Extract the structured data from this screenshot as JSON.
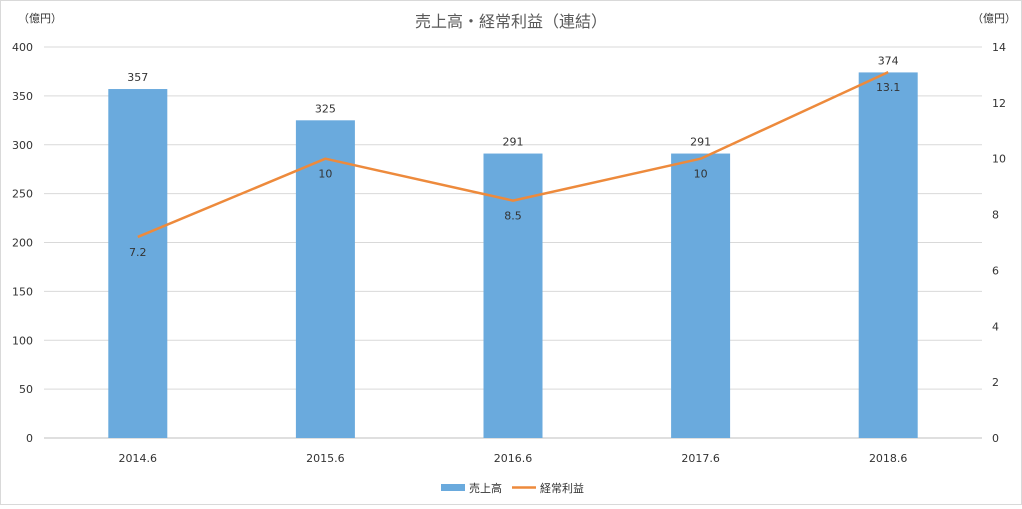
{
  "chart_data": {
    "type": "bar",
    "title": "売上高・経常利益（連結）",
    "categories": [
      "2014.6",
      "2015.6",
      "2016.6",
      "2017.6",
      "2018.6"
    ],
    "y_left": {
      "unit_label": "（億円）",
      "ylim": [
        0,
        400
      ],
      "ticks": [
        0,
        50,
        100,
        150,
        200,
        250,
        300,
        350,
        400
      ]
    },
    "y_right": {
      "unit_label": "（億円）",
      "ylim": [
        0,
        14
      ],
      "ticks": [
        0,
        2,
        4,
        6,
        8,
        10,
        12,
        14
      ]
    },
    "grid": true,
    "legend_position": "bottom",
    "series": [
      {
        "name": "売上高",
        "type": "bar",
        "axis": "left",
        "color": "#6aaadd",
        "values": [
          357,
          325,
          291,
          291,
          374
        ],
        "labels": [
          "357",
          "325",
          "291",
          "291",
          "374"
        ]
      },
      {
        "name": "経常利益",
        "type": "line",
        "axis": "right",
        "color": "#ed8a3c",
        "values": [
          7.2,
          10,
          8.5,
          10,
          13.1
        ],
        "labels": [
          "7.2",
          "10",
          "8.5",
          "10",
          "13.1"
        ]
      }
    ]
  }
}
